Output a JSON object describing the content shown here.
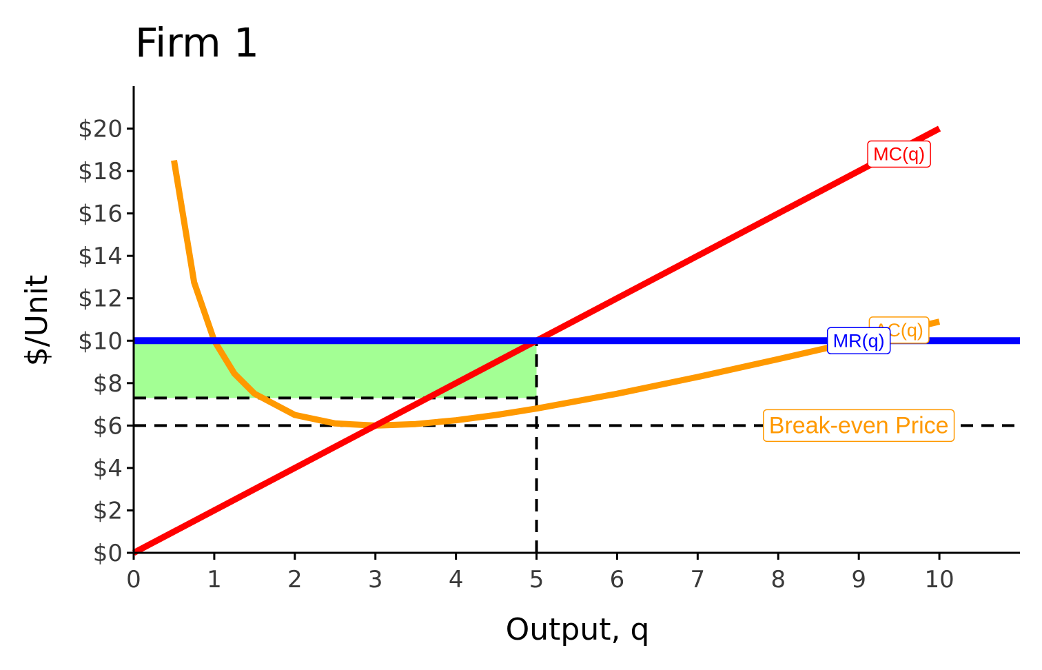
{
  "chart_data": {
    "type": "line",
    "title": "Firm 1",
    "xlabel": "Output, q",
    "ylabel": "$/Unit",
    "xlim": [
      0,
      11
    ],
    "ylim": [
      0,
      22
    ],
    "x_ticks": [
      0,
      1,
      2,
      3,
      4,
      5,
      6,
      7,
      8,
      9,
      10
    ],
    "x_tick_labels": [
      "0",
      "1",
      "2",
      "3",
      "4",
      "5",
      "6",
      "7",
      "8",
      "9",
      "10"
    ],
    "y_ticks": [
      0,
      2,
      4,
      6,
      8,
      10,
      12,
      14,
      16,
      18,
      20
    ],
    "y_tick_labels": [
      "$0",
      "$2",
      "$4",
      "$6",
      "$8",
      "$10",
      "$12",
      "$14",
      "$16",
      "$18",
      "$20"
    ],
    "series": [
      {
        "name": "MC(q)",
        "label": "MC(q)",
        "color": "#ff0000",
        "x": [
          0,
          10
        ],
        "y": [
          0,
          20
        ]
      },
      {
        "name": "AC(q)",
        "label": "AC(q)",
        "color": "#ff9900",
        "x": [
          0.5,
          0.75,
          1,
          1.25,
          1.5,
          2,
          2.5,
          3,
          3.5,
          4,
          4.5,
          5,
          6,
          7,
          8,
          9,
          10
        ],
        "y": [
          18.5,
          12.75,
          10,
          8.45,
          7.5,
          6.5,
          6.1,
          6,
          6.07,
          6.25,
          6.5,
          6.8,
          7.5,
          8.29,
          9.13,
          10,
          10.9
        ]
      },
      {
        "name": "MR(q)",
        "label": "MR(q)",
        "color": "#0000ff",
        "x": [
          0,
          11
        ],
        "y": [
          10,
          10
        ]
      }
    ],
    "profit_rectangle": {
      "color": "#99ff88",
      "x": [
        0,
        5
      ],
      "y": [
        7.3,
        10
      ]
    },
    "reference_lines": [
      {
        "axis": "y",
        "value": 6,
        "xmax": 11,
        "style": "dashed"
      },
      {
        "axis": "y",
        "value": 7.3,
        "xmax": 5,
        "style": "dashed"
      },
      {
        "axis": "x",
        "value": 5,
        "ymax": 10,
        "style": "dashed"
      }
    ],
    "annotations": [
      {
        "text": "Break-even Price",
        "x": 9,
        "y": 6,
        "color": "#ff9900"
      }
    ],
    "grid": false
  }
}
